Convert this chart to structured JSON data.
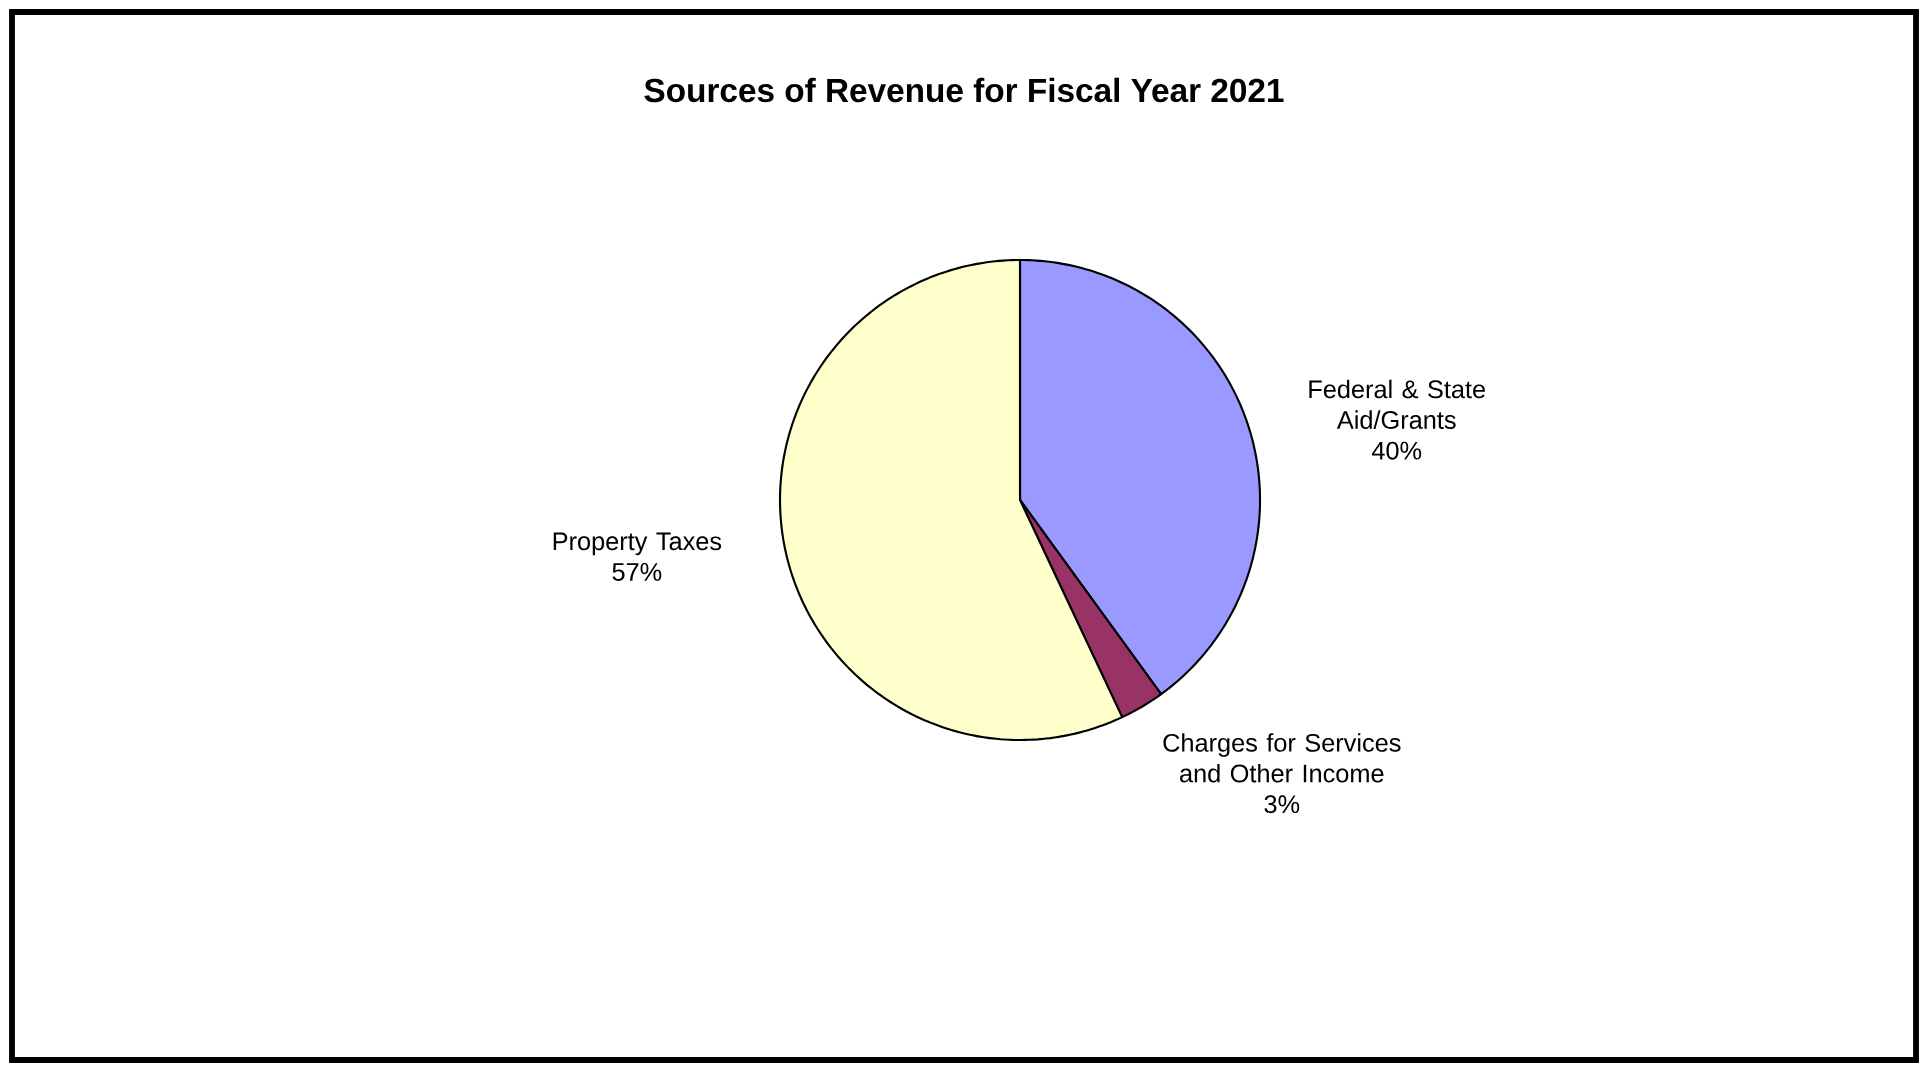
{
  "chart_data": {
    "type": "pie",
    "title": "Sources of Revenue for Fiscal Year 2021",
    "categories": [
      "Federal & State Aid/Grants",
      "Charges for Services and Other Income",
      "Property Taxes"
    ],
    "values": [
      40,
      3,
      57
    ],
    "colors": [
      "#9999ff",
      "#993366",
      "#ffffcc"
    ],
    "data_labels": true,
    "value_labels": [
      "40%",
      "3%",
      "57%"
    ]
  }
}
